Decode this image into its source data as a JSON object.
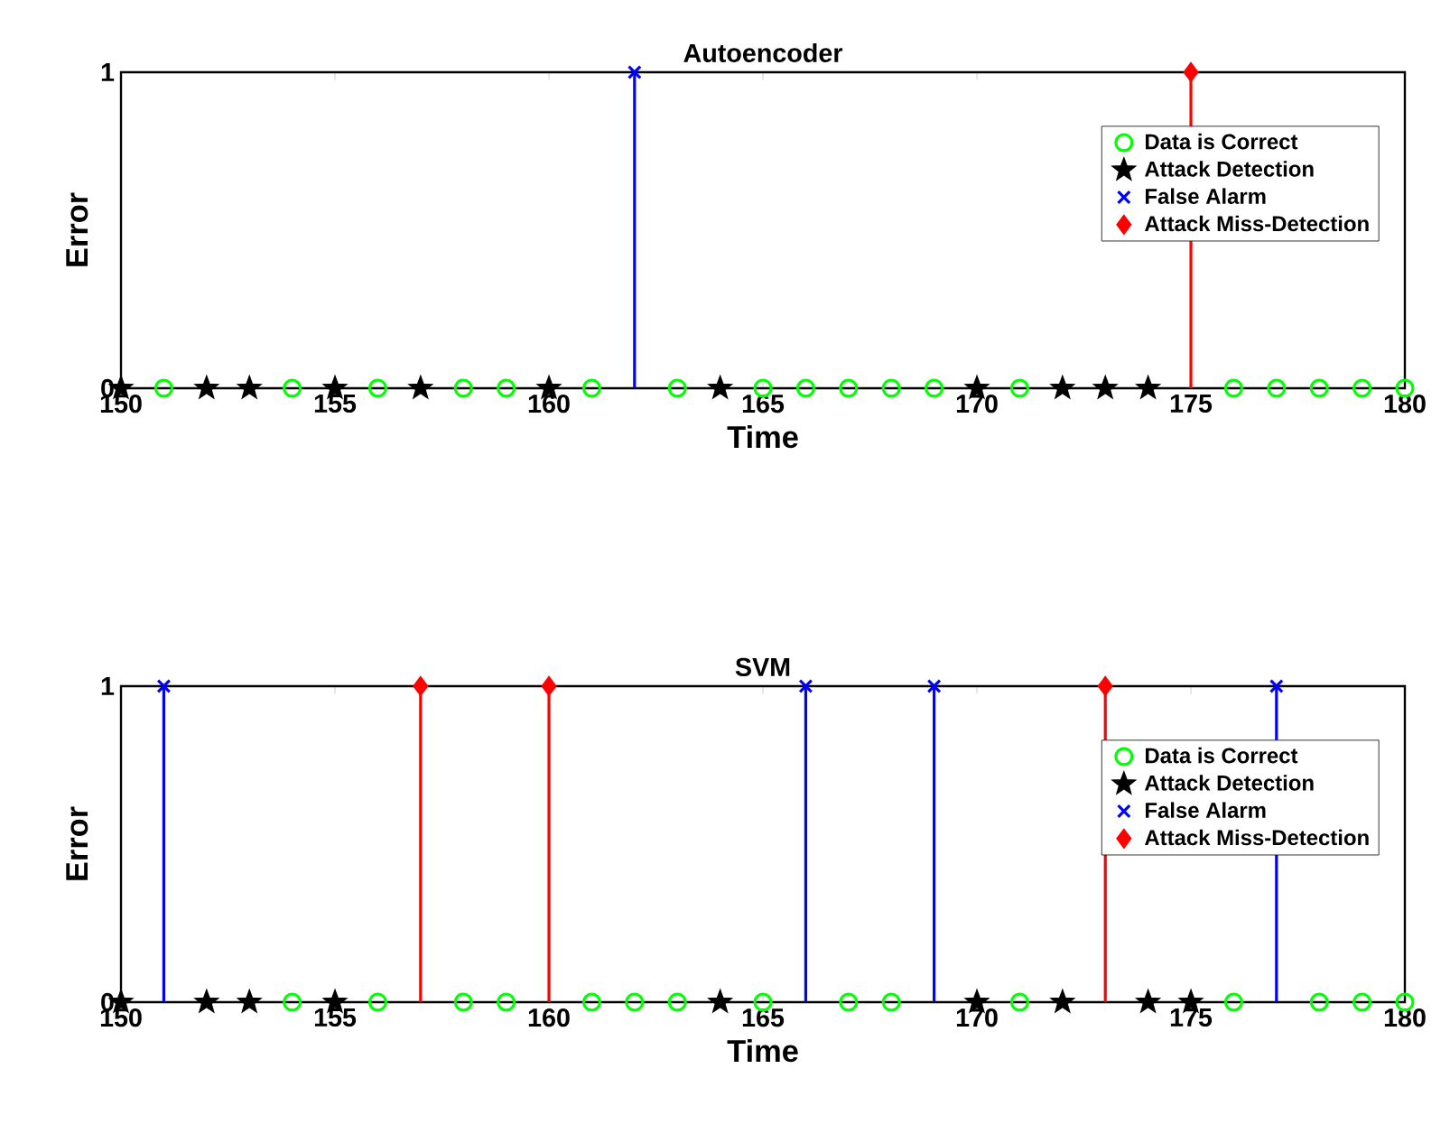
{
  "chart_data": [
    {
      "type": "lollipop",
      "title": "Autoencoder",
      "xlabel": "Time",
      "ylabel": "Error",
      "xlim": [
        150,
        180
      ],
      "ylim": [
        0,
        1
      ],
      "xticks": [
        150,
        155,
        160,
        165,
        170,
        175,
        180
      ],
      "yticks": [
        0,
        1
      ],
      "legend": "top right",
      "grid": false,
      "series": [
        {
          "name": "Data is Correct",
          "color": "#00ff00",
          "marker": "circle",
          "x": [
            151,
            154,
            156,
            158,
            159,
            161,
            163,
            165,
            166,
            167,
            168,
            169,
            171,
            176,
            177,
            178,
            179,
            180
          ],
          "values": [
            0,
            0,
            0,
            0,
            0,
            0,
            0,
            0,
            0,
            0,
            0,
            0,
            0,
            0,
            0,
            0,
            0,
            0
          ]
        },
        {
          "name": "Attack Detection",
          "color": "#000000",
          "marker": "star",
          "x": [
            150,
            152,
            153,
            155,
            157,
            160,
            164,
            170,
            172,
            173,
            174
          ],
          "values": [
            0,
            0,
            0,
            0,
            0,
            0,
            0,
            0,
            0,
            0,
            0
          ]
        },
        {
          "name": "False Alarm",
          "color": "#0000ff",
          "marker": "cross",
          "x": [
            162
          ],
          "values": [
            1
          ]
        },
        {
          "name": "Attack Miss-Detection",
          "color": "#ff0000",
          "marker": "diamond",
          "x": [
            175
          ],
          "values": [
            1
          ]
        }
      ]
    },
    {
      "type": "lollipop",
      "title": "SVM",
      "xlabel": "Time",
      "ylabel": "Error",
      "xlim": [
        150,
        180
      ],
      "ylim": [
        0,
        1
      ],
      "xticks": [
        150,
        155,
        160,
        165,
        170,
        175,
        180
      ],
      "yticks": [
        0,
        1
      ],
      "legend": "top right",
      "grid": false,
      "series": [
        {
          "name": "Data is Correct",
          "color": "#00ff00",
          "marker": "circle",
          "x": [
            154,
            156,
            158,
            159,
            161,
            162,
            163,
            165,
            167,
            168,
            171,
            176,
            178,
            179,
            180
          ],
          "values": [
            0,
            0,
            0,
            0,
            0,
            0,
            0,
            0,
            0,
            0,
            0,
            0,
            0,
            0,
            0
          ]
        },
        {
          "name": "Attack Detection",
          "color": "#000000",
          "marker": "star",
          "x": [
            150,
            152,
            153,
            155,
            164,
            170,
            172,
            174,
            175
          ],
          "values": [
            0,
            0,
            0,
            0,
            0,
            0,
            0,
            0,
            0
          ]
        },
        {
          "name": "False Alarm",
          "color": "#0000ff",
          "marker": "cross",
          "x": [
            151,
            166,
            169,
            177
          ],
          "values": [
            1,
            1,
            1,
            1
          ]
        },
        {
          "name": "Attack Miss-Detection",
          "color": "#ff0000",
          "marker": "diamond",
          "x": [
            157,
            160,
            173
          ],
          "values": [
            1,
            1,
            1
          ]
        }
      ]
    }
  ]
}
